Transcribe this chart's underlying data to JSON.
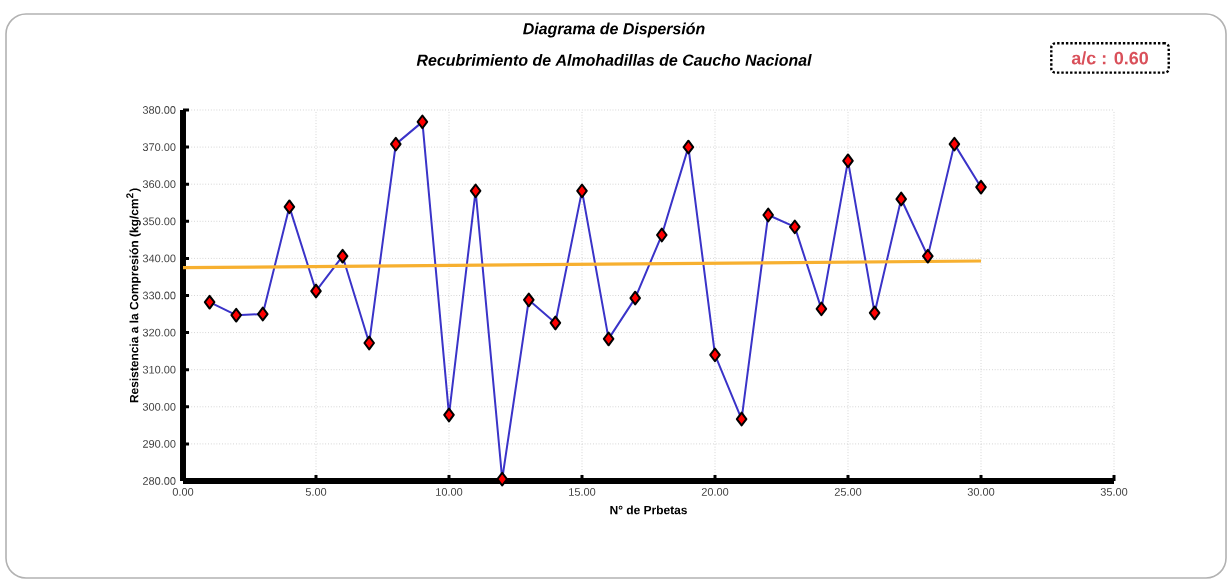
{
  "chart_data": {
    "type": "line",
    "title": "Diagrama de Dispersión",
    "subtitle": "Recubrimiento de Almohadillas de Caucho Nacional",
    "xlabel": "N° de Prbetas",
    "ylabel": "Resistencia a la Compresión (kg/cm$^{2}$)",
    "annotations": [
      "a/c  : 0.60"
    ],
    "x": [
      1,
      2,
      3,
      4,
      5,
      6,
      7,
      8,
      9,
      10,
      11,
      12,
      13,
      14,
      15,
      16,
      17,
      18,
      19,
      20,
      21,
      22,
      23,
      24,
      25,
      26,
      27,
      28,
      29,
      30
    ],
    "series": [
      {
        "color": "#3a33c8",
        "marker": "diamond",
        "values": [
          328.2,
          324.7,
          325,
          353.9,
          331.2,
          340.6,
          317.2,
          370.8,
          376.8,
          297.8,
          358.2,
          280.5,
          328.8,
          322.6,
          358.2,
          318.3,
          329.3,
          346.3,
          370,
          314,
          296.7,
          351.7,
          348.5,
          326.4,
          366.3,
          325.3,
          356,
          340.6,
          370.8,
          359.2
        ]
      },
      {
        "color": "#f7b030",
        "marker": "none",
        "x": [
          0,
          30
        ],
        "values": [
          337.5,
          339.3
        ]
      }
    ],
    "xlim": [
      0,
      35
    ],
    "ylim": [
      280,
      380
    ],
    "xticks": [
      {
        "value": 0,
        "label": "0.00"
      },
      {
        "value": 5,
        "label": "5.00"
      },
      {
        "value": 10,
        "label": "10.00"
      },
      {
        "value": 15,
        "label": "15.00"
      },
      {
        "value": 20,
        "label": "20.00"
      },
      {
        "value": 25,
        "label": "25.00"
      },
      {
        "value": 30,
        "label": "30.00"
      },
      {
        "value": 35,
        "label": "35.00"
      }
    ],
    "yticks": [
      {
        "value": 280,
        "label": "280.00"
      },
      {
        "value": 290,
        "label": "290.00"
      },
      {
        "value": 300,
        "label": "300.00"
      },
      {
        "value": 310,
        "label": "310.00"
      },
      {
        "value": 320,
        "label": "320.00"
      },
      {
        "value": 330,
        "label": "330.00"
      },
      {
        "value": 340,
        "label": "340.00"
      },
      {
        "value": 350,
        "label": "350.00"
      },
      {
        "value": 360,
        "label": "360.00"
      },
      {
        "value": 370,
        "label": "370.00"
      },
      {
        "value": 380,
        "label": "380.00"
      }
    ],
    "grid": true,
    "line_style": "solid"
  }
}
